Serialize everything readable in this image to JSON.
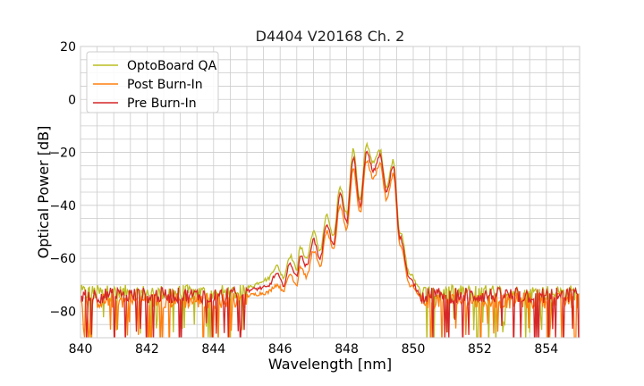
{
  "chart_data": {
    "type": "line",
    "title": "D4404 V20168 Ch. 2",
    "xlabel": "Wavelength [nm]",
    "ylabel": "Optical Power [dB]",
    "xlim": [
      840,
      855
    ],
    "ylim": [
      -90,
      20
    ],
    "x_ticks": [
      "840",
      "842",
      "844",
      "846",
      "848",
      "850",
      "852",
      "854"
    ],
    "y_ticks": [
      "20",
      "0",
      "−20",
      "−40",
      "−60",
      "−80"
    ],
    "grid": true,
    "legend_position": "top-left",
    "series": [
      {
        "name": "OptoBoard QA",
        "color": "#bcbd22",
        "noise_floor": -73,
        "points": [
          [
            845.0,
            -71
          ],
          [
            845.6,
            -68
          ],
          [
            845.9,
            -63
          ],
          [
            846.1,
            -67
          ],
          [
            846.3,
            -59
          ],
          [
            846.5,
            -64
          ],
          [
            846.6,
            -56
          ],
          [
            846.8,
            -60
          ],
          [
            847.0,
            -50
          ],
          [
            847.2,
            -57
          ],
          [
            847.4,
            -44
          ],
          [
            847.6,
            -52
          ],
          [
            847.8,
            -33
          ],
          [
            848.0,
            -43
          ],
          [
            848.2,
            -19
          ],
          [
            848.4,
            -38
          ],
          [
            848.6,
            -17
          ],
          [
            848.8,
            -24
          ],
          [
            849.0,
            -19
          ],
          [
            849.2,
            -33
          ],
          [
            849.4,
            -23
          ],
          [
            849.6,
            -50
          ],
          [
            849.9,
            -66
          ],
          [
            850.2,
            -71
          ]
        ]
      },
      {
        "name": "Post Burn-In",
        "color": "#ff7f0e",
        "noise_floor": -76,
        "points": [
          [
            845.0,
            -74
          ],
          [
            845.6,
            -73
          ],
          [
            845.9,
            -70
          ],
          [
            846.1,
            -72
          ],
          [
            846.3,
            -66
          ],
          [
            846.5,
            -70
          ],
          [
            846.6,
            -63
          ],
          [
            846.8,
            -67
          ],
          [
            847.0,
            -57
          ],
          [
            847.2,
            -63
          ],
          [
            847.4,
            -50
          ],
          [
            847.6,
            -57
          ],
          [
            847.8,
            -40
          ],
          [
            848.0,
            -49
          ],
          [
            848.2,
            -26
          ],
          [
            848.4,
            -43
          ],
          [
            848.6,
            -23
          ],
          [
            848.8,
            -30
          ],
          [
            849.0,
            -24
          ],
          [
            849.2,
            -38
          ],
          [
            849.4,
            -28
          ],
          [
            849.6,
            -55
          ],
          [
            849.9,
            -70
          ],
          [
            850.2,
            -74
          ]
        ]
      },
      {
        "name": "Pre Burn-In",
        "color": "#d62728",
        "noise_floor": -74,
        "points": [
          [
            845.0,
            -72
          ],
          [
            845.6,
            -71
          ],
          [
            845.9,
            -66
          ],
          [
            846.1,
            -70
          ],
          [
            846.3,
            -62
          ],
          [
            846.5,
            -67
          ],
          [
            846.6,
            -59
          ],
          [
            846.8,
            -63
          ],
          [
            847.0,
            -53
          ],
          [
            847.2,
            -60
          ],
          [
            847.4,
            -47
          ],
          [
            847.6,
            -55
          ],
          [
            847.8,
            -36
          ],
          [
            848.0,
            -46
          ],
          [
            848.2,
            -22
          ],
          [
            848.4,
            -40
          ],
          [
            848.6,
            -20
          ],
          [
            848.8,
            -27
          ],
          [
            849.0,
            -21
          ],
          [
            849.2,
            -35
          ],
          [
            849.4,
            -25
          ],
          [
            849.6,
            -52
          ],
          [
            849.9,
            -68
          ],
          [
            850.2,
            -73
          ]
        ]
      }
    ]
  }
}
